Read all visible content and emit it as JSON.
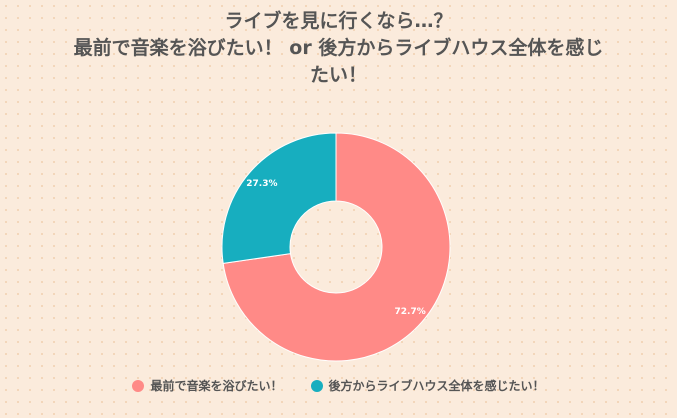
{
  "chart_data": {
    "type": "pie",
    "donut": true,
    "title_lines": [
      "ライブを見に行くなら…？",
      "最前で音楽を浴びたい！ or 後方からライブハウス全体を感じ",
      "たい！"
    ],
    "categories": [
      "最前で音楽を浴びたい！",
      "後方からライブハウス全体を感じたい！"
    ],
    "values": [
      72.7,
      27.3
    ],
    "labels": [
      "72.7%",
      "27.3%"
    ],
    "colors": [
      "#ff8a87",
      "#17aebf"
    ],
    "legend_position": "bottom"
  }
}
